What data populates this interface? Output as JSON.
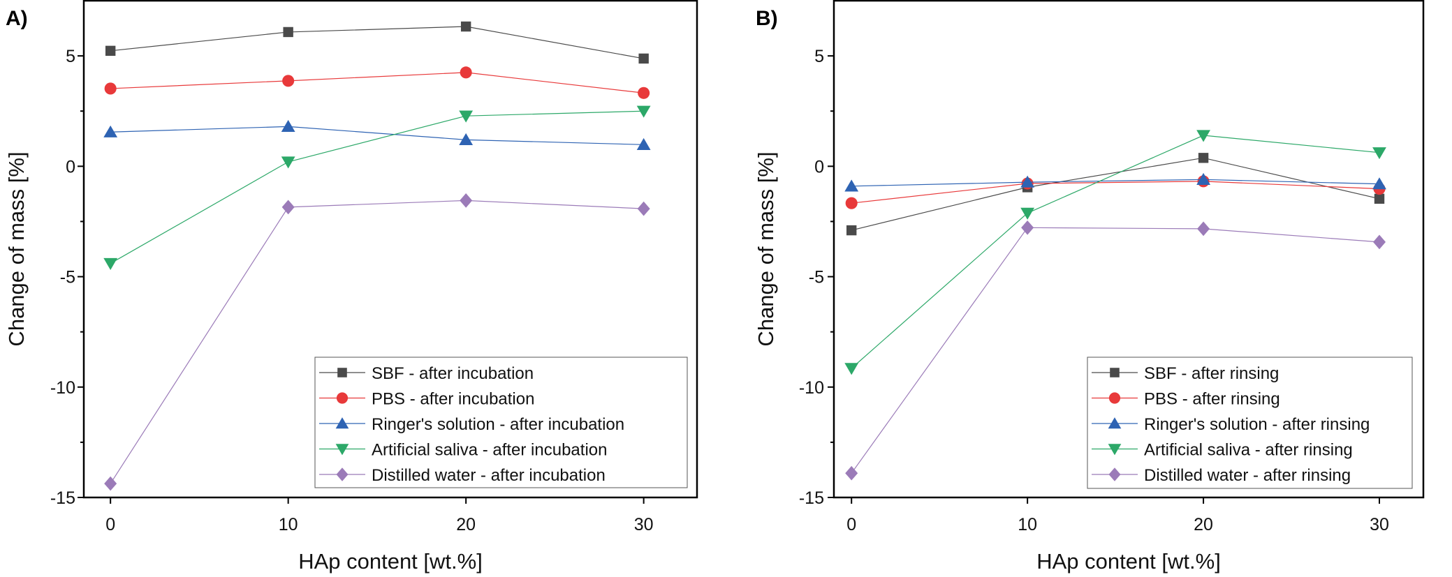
{
  "chart_data": [
    {
      "type": "line",
      "panel_label": "A)",
      "xlabel": "HAp content [wt.%]",
      "ylabel": "Change of mass [%]",
      "xlim": [
        -1.5,
        33
      ],
      "ylim": [
        -15,
        7.5
      ],
      "xticks": [
        0,
        10,
        20,
        30
      ],
      "yticks": [
        -15,
        -10,
        -5,
        0,
        5
      ],
      "legend_position": "bottom-right",
      "x": [
        0,
        10,
        20,
        30
      ],
      "series": [
        {
          "name": "SBF - after incubation",
          "marker": "square",
          "color": "#4a4a4a",
          "values": [
            5.23,
            6.08,
            6.33,
            4.88
          ]
        },
        {
          "name": "PBS - after incubation",
          "marker": "circle",
          "color": "#e8393a",
          "values": [
            3.52,
            3.87,
            4.25,
            3.32
          ]
        },
        {
          "name": "Ringer's solution - after incubation",
          "marker": "triangle-up",
          "color": "#2e63b3",
          "values": [
            1.55,
            1.8,
            1.2,
            0.98
          ]
        },
        {
          "name": "Artificial saliva - after incubation",
          "marker": "triangle-down",
          "color": "#2ca868",
          "values": [
            -4.4,
            0.2,
            2.28,
            2.5
          ]
        },
        {
          "name": "Distilled water - after incubation",
          "marker": "diamond",
          "color": "#9b7bb8",
          "values": [
            -14.37,
            -1.85,
            -1.55,
            -1.92
          ]
        }
      ]
    },
    {
      "type": "line",
      "panel_label": "B)",
      "xlabel": "HAp content [wt.%]",
      "ylabel": "Change of mass [%]",
      "xlim": [
        -1,
        32.5
      ],
      "ylim": [
        -15,
        7.5
      ],
      "xticks": [
        0,
        10,
        20,
        30
      ],
      "yticks": [
        -15,
        -10,
        -5,
        0,
        5
      ],
      "legend_position": "bottom-right",
      "x": [
        0,
        10,
        20,
        30
      ],
      "series": [
        {
          "name": "SBF - after rinsing",
          "marker": "square",
          "color": "#4a4a4a",
          "values": [
            -2.9,
            -0.95,
            0.38,
            -1.47
          ]
        },
        {
          "name": "PBS - after rinsing",
          "marker": "circle",
          "color": "#e8393a",
          "values": [
            -1.67,
            -0.78,
            -0.68,
            -1.02
          ]
        },
        {
          "name": "Ringer's solution - after rinsing",
          "marker": "triangle-up",
          "color": "#2e63b3",
          "values": [
            -0.9,
            -0.72,
            -0.6,
            -0.8
          ]
        },
        {
          "name": "Artificial saliva - after rinsing",
          "marker": "triangle-down",
          "color": "#2ca868",
          "values": [
            -9.15,
            -2.12,
            1.4,
            0.62
          ]
        },
        {
          "name": "Distilled water - after rinsing",
          "marker": "diamond",
          "color": "#9b7bb8",
          "values": [
            -13.9,
            -2.78,
            -2.83,
            -3.43
          ]
        }
      ]
    }
  ]
}
